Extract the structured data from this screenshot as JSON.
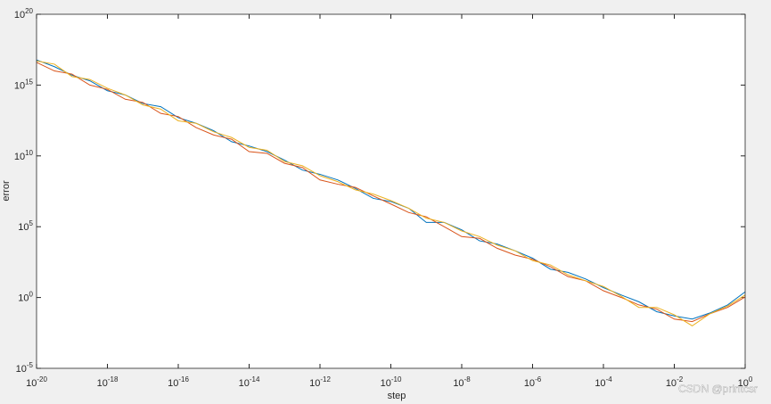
{
  "chart_data": {
    "type": "line",
    "xlabel": "step",
    "ylabel": "error",
    "xscale": "log",
    "yscale": "log",
    "x": [
      1e-20,
      3.2e-20,
      1e-19,
      3.2e-19,
      1e-18,
      3.2e-18,
      1e-17,
      3.2e-17,
      1e-16,
      3.2e-16,
      1e-15,
      3.2e-15,
      1e-14,
      3.2e-14,
      1e-13,
      3.2e-13,
      1e-12,
      3.2e-12,
      1e-11,
      3.2e-11,
      1e-10,
      3.2e-10,
      1e-09,
      3.2e-09,
      1e-08,
      3.2e-08,
      1e-07,
      3.2e-07,
      1e-06,
      3.2e-06,
      1e-05,
      3.2e-05,
      0.0001,
      0.00032,
      0.001,
      0.0032,
      0.01,
      0.032,
      0.1,
      0.32,
      1
    ],
    "series": [
      {
        "color": "#0072BD",
        "values": [
          6e+16,
          2e+16,
          5000000000000000.0,
          2000000000000000.0,
          400000000000000.0,
          200000000000000.0,
          50000000000000.0,
          30000000000000.0,
          5000000000000.0,
          2000000000000.0,
          600000000000.0,
          100000000000.0,
          50000000000.0,
          20000000000.0,
          5000000000.0,
          1000000000.0,
          500000000.0,
          200000000.0,
          50000000.0,
          10000000.0,
          6000000.0,
          2000000.0,
          200000.0,
          200000.0,
          60000.0,
          10000.0,
          6000.0,
          2000.0,
          600.0,
          100.0,
          60.0,
          20.0,
          5,
          1.5,
          0.5,
          0.1,
          0.05,
          0.03,
          0.08,
          0.3,
          2.5
        ]
      },
      {
        "color": "#D95319",
        "values": [
          4e+16,
          1e+16,
          6000000000000000.0,
          1000000000000000.0,
          500000000000000.0,
          100000000000000.0,
          60000000000000.0,
          10000000000000.0,
          6000000000000.0,
          1000000000000.0,
          300000000000.0,
          150000000000.0,
          20000000000.0,
          15000000000.0,
          3000000000.0,
          1500000000.0,
          200000000.0,
          100000000.0,
          60000000.0,
          15000000.0,
          4000000.0,
          1000000.0,
          500000.0,
          100000.0,
          20000.0,
          15000.0,
          3000.0,
          1000.0,
          500.0,
          150.0,
          30.0,
          15.0,
          3,
          1,
          0.3,
          0.15,
          0.03,
          0.02,
          0.07,
          0.2,
          1.1
        ]
      },
      {
        "color": "#EDB120",
        "values": [
          5e+16,
          3e+16,
          4000000000000000.0,
          2500000000000000.0,
          600000000000000.0,
          200000000000000.0,
          40000000000000.0,
          20000000000000.0,
          3000000000000.0,
          2000000000000.0,
          500000000000.0,
          200000000000.0,
          40000000000.0,
          25000000000.0,
          4000000000.0,
          2000000000.0,
          400000000.0,
          150000000.0,
          40000000.0,
          20000000.0,
          7000000.0,
          2000000.0,
          400000.0,
          200000.0,
          50000.0,
          20000.0,
          5000.0,
          2000.0,
          400.0,
          200.0,
          40.0,
          15.0,
          6,
          1.2,
          0.2,
          0.2,
          0.06,
          0.01,
          0.07,
          0.25,
          1.5
        ]
      }
    ],
    "xlim": [
      1e-20,
      1
    ],
    "ylim": [
      1e-05,
      1e+20
    ],
    "xticks": [
      {
        "value": 1e-20,
        "label": "10^-20"
      },
      {
        "value": 1e-18,
        "label": "10^-18"
      },
      {
        "value": 1e-16,
        "label": "10^-16"
      },
      {
        "value": 1e-14,
        "label": "10^-14"
      },
      {
        "value": 1e-12,
        "label": "10^-12"
      },
      {
        "value": 1e-10,
        "label": "10^-10"
      },
      {
        "value": 1e-08,
        "label": "10^-8"
      },
      {
        "value": 1e-06,
        "label": "10^-6"
      },
      {
        "value": 0.0001,
        "label": "10^-4"
      },
      {
        "value": 0.01,
        "label": "10^-2"
      },
      {
        "value": 1,
        "label": "10^0"
      }
    ],
    "yticks": [
      {
        "value": 1e-05,
        "label": "10^-5"
      },
      {
        "value": 1,
        "label": "10^0"
      },
      {
        "value": 100000.0,
        "label": "10^5"
      },
      {
        "value": 10000000000.0,
        "label": "10^10"
      },
      {
        "value": 1000000000000000.0,
        "label": "10^15"
      },
      {
        "value": 1e+20,
        "label": "10^20"
      }
    ],
    "watermark": "CSDN @printcsr"
  }
}
